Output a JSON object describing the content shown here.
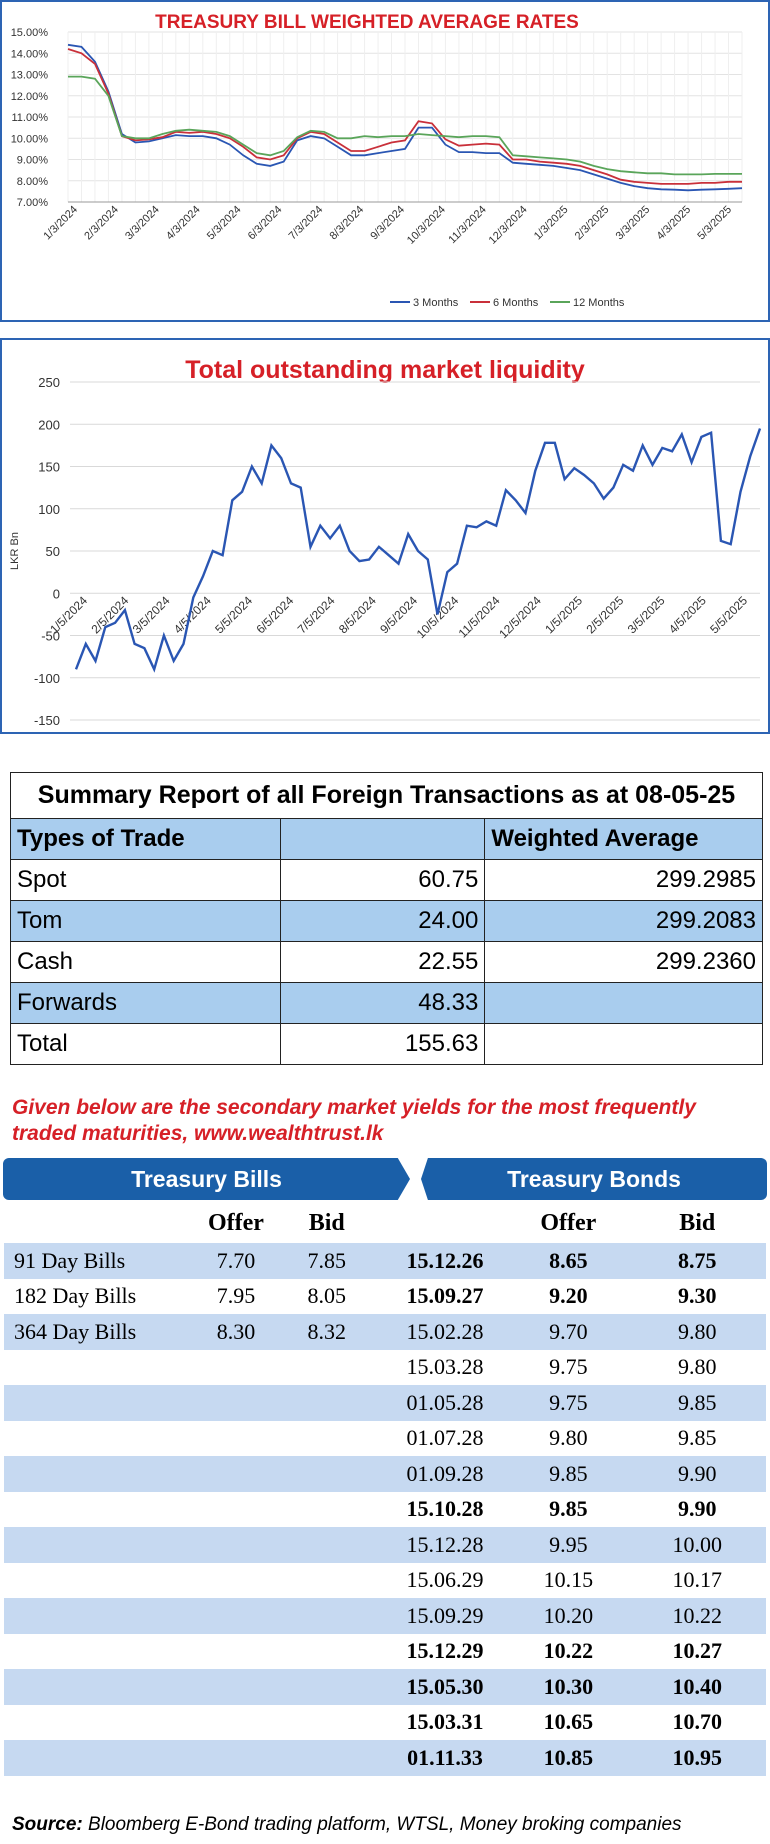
{
  "charts": [
    {
      "type": "line",
      "title": "TREASURY BILL WEIGHTED AVERAGE RATES",
      "ylim": [
        7.0,
        15.0
      ],
      "y_ticks": [
        "7.00%",
        "8.00%",
        "9.00%",
        "10.00%",
        "11.00%",
        "12.00%",
        "13.00%",
        "14.00%",
        "15.00%"
      ],
      "x_ticks": [
        "1/3/2024",
        "2/3/2024",
        "3/3/2024",
        "4/3/2024",
        "5/3/2024",
        "6/3/2024",
        "7/3/2024",
        "8/3/2024",
        "9/3/2024",
        "10/3/2024",
        "11/3/2024",
        "12/3/2024",
        "1/3/2025",
        "2/3/2025",
        "3/3/2025",
        "4/3/2025",
        "5/3/2025"
      ],
      "legend_position": "bottom-right",
      "series": [
        {
          "name": "3 Months",
          "color": "#2a56b3",
          "values": [
            14.4,
            14.3,
            13.6,
            12.2,
            10.2,
            9.8,
            9.85,
            10.0,
            10.15,
            10.1,
            10.1,
            10.0,
            9.7,
            9.2,
            8.8,
            8.7,
            8.9,
            9.9,
            10.1,
            10.0,
            9.6,
            9.2,
            9.2,
            9.3,
            9.4,
            9.5,
            10.5,
            10.5,
            9.7,
            9.35,
            9.35,
            9.3,
            9.3,
            8.85,
            8.8,
            8.75,
            8.7,
            8.6,
            8.5,
            8.3,
            8.1,
            7.9,
            7.75,
            7.65,
            7.6,
            7.58,
            7.55,
            7.58,
            7.6,
            7.62,
            7.65
          ]
        },
        {
          "name": "6 Months",
          "color": "#c9303a",
          "values": [
            14.2,
            14.0,
            13.5,
            12.1,
            10.1,
            9.9,
            9.95,
            10.05,
            10.3,
            10.25,
            10.3,
            10.2,
            10.0,
            9.6,
            9.1,
            9.0,
            9.2,
            10.0,
            10.3,
            10.2,
            9.8,
            9.4,
            9.4,
            9.6,
            9.8,
            9.9,
            10.8,
            10.7,
            9.95,
            9.65,
            9.7,
            9.75,
            9.7,
            9.0,
            9.0,
            8.9,
            8.85,
            8.8,
            8.7,
            8.5,
            8.3,
            8.05,
            7.95,
            7.9,
            7.85,
            7.85,
            7.85,
            7.9,
            7.9,
            7.95,
            7.95
          ]
        },
        {
          "name": "12 Months",
          "color": "#5aa55a",
          "values": [
            12.9,
            12.9,
            12.8,
            12.0,
            10.1,
            10.0,
            10.0,
            10.2,
            10.35,
            10.4,
            10.35,
            10.3,
            10.1,
            9.7,
            9.3,
            9.2,
            9.4,
            10.05,
            10.35,
            10.3,
            10.0,
            10.0,
            10.1,
            10.05,
            10.1,
            10.1,
            10.2,
            10.15,
            10.1,
            10.05,
            10.1,
            10.1,
            10.05,
            9.2,
            9.15,
            9.1,
            9.05,
            9.0,
            8.9,
            8.7,
            8.55,
            8.45,
            8.4,
            8.35,
            8.35,
            8.3,
            8.3,
            8.3,
            8.32,
            8.32,
            8.32
          ]
        }
      ]
    },
    {
      "type": "line",
      "title": "Total outstanding market liquidity",
      "ylabel": "LKR Bn",
      "ylim": [
        -150,
        250
      ],
      "y_ticks": [
        "250",
        "200",
        "150",
        "100",
        "50",
        "0",
        "-50",
        "-100",
        "-150"
      ],
      "x_ticks": [
        "1/5/2024",
        "2/5/2024",
        "3/5/2024",
        "4/5/2024",
        "5/5/2024",
        "6/5/2024",
        "7/5/2024",
        "8/5/2024",
        "9/5/2024",
        "10/5/2024",
        "11/5/2024",
        "12/5/2024",
        "1/5/2025",
        "2/5/2025",
        "3/5/2025",
        "4/5/2025",
        "5/5/2025"
      ],
      "series": [
        {
          "color": "#2a56b3",
          "values": [
            -90,
            -60,
            -80,
            -40,
            -35,
            -20,
            -60,
            -65,
            -90,
            -50,
            -80,
            -60,
            -5,
            20,
            50,
            45,
            110,
            120,
            150,
            130,
            175,
            160,
            130,
            125,
            55,
            80,
            65,
            80,
            50,
            38,
            40,
            55,
            45,
            35,
            70,
            50,
            40,
            -25,
            25,
            35,
            80,
            78,
            85,
            80,
            122,
            110,
            95,
            145,
            178,
            178,
            135,
            148,
            140,
            130,
            112,
            125,
            152,
            145,
            175,
            152,
            172,
            168,
            188,
            155,
            185,
            190,
            62,
            58,
            120,
            162,
            195
          ]
        }
      ]
    },
    {
      "type": "table",
      "title": "Summary Report of all Foreign Transactions as at 08-05-25",
      "headers": [
        "Types of Trade",
        "",
        "Weighted Average"
      ],
      "rows": [
        [
          "Spot",
          "60.75",
          "299.2985"
        ],
        [
          "Tom",
          "24.00",
          "299.2083"
        ],
        [
          "Cash",
          "22.55",
          "299.2360"
        ],
        [
          "Forwards",
          "48.33",
          ""
        ],
        [
          "Total",
          "155.63",
          ""
        ]
      ]
    }
  ],
  "yields": {
    "intro": "Given below are the secondary market yields for the most frequently traded maturities, www.wealthtrust.lk",
    "bills_header": "Treasury Bills",
    "bonds_header": "Treasury Bonds",
    "col_offer": "Offer",
    "col_bid": "Bid",
    "bills": [
      {
        "name": "91 Day Bills",
        "offer": "7.70",
        "bid": "7.85"
      },
      {
        "name": "182 Day Bills",
        "offer": "7.95",
        "bid": "8.05"
      },
      {
        "name": "364 Day Bills",
        "offer": "8.30",
        "bid": "8.32"
      }
    ],
    "bonds": [
      {
        "maturity": "15.12.26",
        "offer": "8.65",
        "bid": "8.75",
        "bold": true
      },
      {
        "maturity": "15.09.27",
        "offer": "9.20",
        "bid": "9.30",
        "bold": true
      },
      {
        "maturity": "15.02.28",
        "offer": "9.70",
        "bid": "9.80",
        "bold": false
      },
      {
        "maturity": "15.03.28",
        "offer": "9.75",
        "bid": "9.80",
        "bold": false
      },
      {
        "maturity": "01.05.28",
        "offer": "9.75",
        "bid": "9.85",
        "bold": false
      },
      {
        "maturity": "01.07.28",
        "offer": "9.80",
        "bid": "9.85",
        "bold": false
      },
      {
        "maturity": "01.09.28",
        "offer": "9.85",
        "bid": "9.90",
        "bold": false
      },
      {
        "maturity": "15.10.28",
        "offer": "9.85",
        "bid": "9.90",
        "bold": true
      },
      {
        "maturity": "15.12.28",
        "offer": "9.95",
        "bid": "10.00",
        "bold": false
      },
      {
        "maturity": "15.06.29",
        "offer": "10.15",
        "bid": "10.17",
        "bold": false
      },
      {
        "maturity": "15.09.29",
        "offer": "10.20",
        "bid": "10.22",
        "bold": false
      },
      {
        "maturity": "15.12.29",
        "offer": "10.22",
        "bid": "10.27",
        "bold": true
      },
      {
        "maturity": "15.05.30",
        "offer": "10.30",
        "bid": "10.40",
        "bold": true
      },
      {
        "maturity": "15.03.31",
        "offer": "10.65",
        "bid": "10.70",
        "bold": true
      },
      {
        "maturity": "01.11.33",
        "offer": "10.85",
        "bid": "10.95",
        "bold": true
      }
    ]
  },
  "source": {
    "label": "Source:",
    "text": " Bloomberg E-Bond trading platform, WTSL, Money broking companies"
  }
}
